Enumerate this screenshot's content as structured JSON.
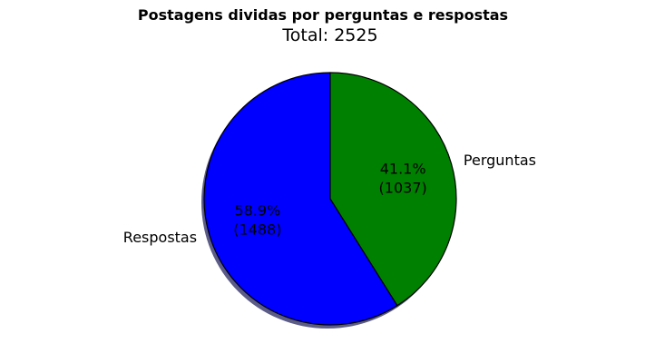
{
  "chart_data": {
    "type": "pie",
    "title": "Postagens dividas por perguntas e respostas",
    "subtitle": "Total: 2525",
    "labels": [
      "Respostas",
      "Perguntas"
    ],
    "values": [
      1488,
      1037
    ],
    "percent_labels": [
      "58.9%",
      "41.1%"
    ],
    "count_labels": [
      "(1488)",
      "(1037)"
    ],
    "colors": [
      "#0000ff",
      "#008000"
    ],
    "edge_color": "#000000",
    "shadow_color": "#5c5c88",
    "shadow": true,
    "legend": "none"
  }
}
